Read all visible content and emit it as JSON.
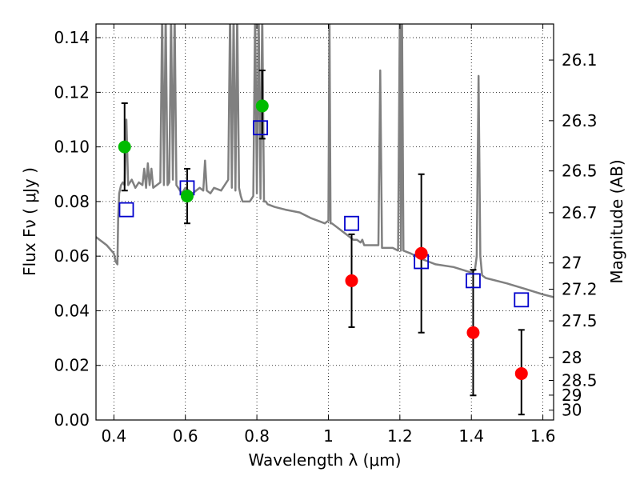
{
  "chart_data": {
    "type": "scatter",
    "xlabel": "Wavelength  λ (μm)",
    "ylabel": "Flux  Fν  ( μJy )",
    "y2label": "Magnitude (AB)",
    "xlim": [
      0.35,
      1.63
    ],
    "ylim": [
      0.0,
      0.145
    ],
    "grid": true,
    "x_ticks": [
      {
        "value": 0.4,
        "label": "0.4"
      },
      {
        "value": 0.6,
        "label": "0.6"
      },
      {
        "value": 0.8,
        "label": "0.8"
      },
      {
        "value": 1.0,
        "label": "1"
      },
      {
        "value": 1.2,
        "label": "1.2"
      },
      {
        "value": 1.4,
        "label": "1.4"
      },
      {
        "value": 1.6,
        "label": "1.6"
      }
    ],
    "y_ticks": [
      {
        "value": 0.0,
        "label": "0.00"
      },
      {
        "value": 0.02,
        "label": "0.02"
      },
      {
        "value": 0.04,
        "label": "0.04"
      },
      {
        "value": 0.06,
        "label": "0.06"
      },
      {
        "value": 0.08,
        "label": "0.08"
      },
      {
        "value": 0.1,
        "label": "0.10"
      },
      {
        "value": 0.12,
        "label": "0.12"
      },
      {
        "value": 0.14,
        "label": "0.14"
      }
    ],
    "y2_ticks": [
      {
        "flux": 0.1318,
        "label": "26.1"
      },
      {
        "flux": 0.1096,
        "label": "26.3"
      },
      {
        "flux": 0.0912,
        "label": "26.5"
      },
      {
        "flux": 0.0759,
        "label": "26.7"
      },
      {
        "flux": 0.0575,
        "label": "27"
      },
      {
        "flux": 0.0479,
        "label": "27.2"
      },
      {
        "flux": 0.0363,
        "label": "27.5"
      },
      {
        "flux": 0.0229,
        "label": "28"
      },
      {
        "flux": 0.0145,
        "label": "28.5"
      },
      {
        "flux": 0.0091,
        "label": "29"
      },
      {
        "flux": 0.0036,
        "label": "30"
      }
    ],
    "series": [
      {
        "kind": "model-spectrum",
        "color": "#808080",
        "x": [
          0.35,
          0.38,
          0.4,
          0.405,
          0.41,
          0.412,
          0.415,
          0.42,
          0.425,
          0.43,
          0.435,
          0.44,
          0.45,
          0.46,
          0.47,
          0.48,
          0.485,
          0.49,
          0.495,
          0.5,
          0.505,
          0.51,
          0.52,
          0.53,
          0.535,
          0.54,
          0.545,
          0.55,
          0.555,
          0.56,
          0.565,
          0.57,
          0.575,
          0.58,
          0.59,
          0.6,
          0.62,
          0.64,
          0.65,
          0.655,
          0.66,
          0.67,
          0.68,
          0.7,
          0.72,
          0.725,
          0.73,
          0.735,
          0.74,
          0.745,
          0.75,
          0.755,
          0.76,
          0.78,
          0.79,
          0.795,
          0.8,
          0.805,
          0.81,
          0.815,
          0.82,
          0.825,
          0.83,
          0.85,
          0.88,
          0.92,
          0.95,
          0.97,
          0.99,
          1.0,
          1.003,
          1.006,
          1.01,
          1.02,
          1.05,
          1.07,
          1.08,
          1.09,
          1.095,
          1.1,
          1.12,
          1.14,
          1.145,
          1.15,
          1.16,
          1.18,
          1.195,
          1.2,
          1.203,
          1.206,
          1.21,
          1.23,
          1.26,
          1.28,
          1.3,
          1.35,
          1.4,
          1.41,
          1.415,
          1.42,
          1.425,
          1.43,
          1.44,
          1.5,
          1.55,
          1.6,
          1.63
        ],
        "y": [
          0.067,
          0.064,
          0.061,
          0.058,
          0.057,
          0.074,
          0.083,
          0.086,
          0.087,
          0.086,
          0.11,
          0.086,
          0.088,
          0.085,
          0.087,
          0.086,
          0.092,
          0.085,
          0.094,
          0.086,
          0.092,
          0.085,
          0.086,
          0.087,
          0.15,
          0.086,
          0.15,
          0.086,
          0.087,
          0.15,
          0.088,
          0.15,
          0.086,
          0.085,
          0.083,
          0.085,
          0.083,
          0.085,
          0.084,
          0.095,
          0.084,
          0.083,
          0.085,
          0.084,
          0.088,
          0.15,
          0.085,
          0.15,
          0.084,
          0.15,
          0.085,
          0.082,
          0.08,
          0.08,
          0.082,
          0.15,
          0.083,
          0.15,
          0.081,
          0.15,
          0.08,
          0.08,
          0.079,
          0.078,
          0.077,
          0.076,
          0.074,
          0.073,
          0.072,
          0.073,
          0.15,
          0.072,
          0.072,
          0.071,
          0.068,
          0.066,
          0.066,
          0.065,
          0.066,
          0.064,
          0.064,
          0.064,
          0.128,
          0.063,
          0.063,
          0.063,
          0.062,
          0.15,
          0.062,
          0.15,
          0.062,
          0.061,
          0.059,
          0.058,
          0.057,
          0.056,
          0.054,
          0.055,
          0.06,
          0.126,
          0.06,
          0.053,
          0.052,
          0.05,
          0.048,
          0.046,
          0.045
        ]
      },
      {
        "kind": "model-photometry",
        "marker": "open-square",
        "color": "#0000cc",
        "x": [
          0.435,
          0.605,
          0.81,
          1.065,
          1.26,
          1.405,
          1.54
        ],
        "y": [
          0.077,
          0.085,
          0.107,
          0.072,
          0.058,
          0.051,
          0.044
        ]
      },
      {
        "kind": "detections",
        "marker": "filled-circle",
        "color": "#00bb00",
        "x": [
          0.43,
          0.605,
          0.815
        ],
        "y": [
          0.1,
          0.082,
          0.115
        ],
        "yerr_low": [
          0.084,
          0.072,
          0.103
        ],
        "yerr_high": [
          0.116,
          0.092,
          0.128
        ]
      },
      {
        "kind": "upper-limits",
        "marker": "filled-circle",
        "color": "#ff0000",
        "x": [
          1.065,
          1.26,
          1.405,
          1.54
        ],
        "y": [
          0.051,
          0.061,
          0.032,
          0.017
        ],
        "yerr_low": [
          0.034,
          0.032,
          0.009,
          0.002
        ],
        "yerr_high": [
          0.068,
          0.09,
          0.055,
          0.033
        ]
      }
    ]
  }
}
